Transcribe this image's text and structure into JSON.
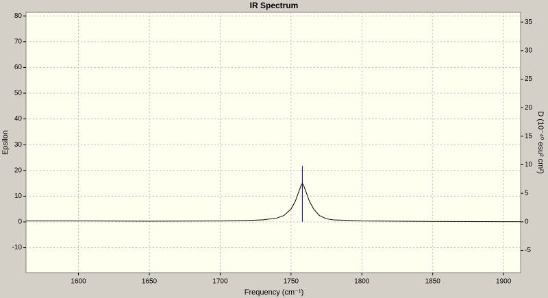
{
  "chart_data": {
    "type": "line",
    "title": "IR Spectrum",
    "x_label": "Frequency (cm⁻¹)",
    "y_label": "Epsilon",
    "y2_label": "D (10⁻⁴⁰ esu² cm²)",
    "xlim": [
      1563,
      1912
    ],
    "ylim": [
      -19.7,
      81.4
    ],
    "y2lim": [
      -8.9,
      36.7
    ],
    "xticks": [
      1600,
      1650,
      1700,
      1750,
      1800,
      1850,
      1900
    ],
    "yticks": [
      -10,
      0,
      10,
      20,
      30,
      40,
      50,
      60,
      70,
      80
    ],
    "y2ticks": [
      -5,
      0,
      5,
      10,
      15,
      20,
      25,
      30,
      35
    ],
    "grid": true,
    "series": [
      {
        "color": "#000000",
        "style": "line",
        "x": [
          1563,
          1600,
          1650,
          1700,
          1720,
          1730,
          1740,
          1745,
          1750,
          1753,
          1755,
          1757,
          1758,
          1759,
          1761,
          1763,
          1766,
          1770,
          1775,
          1780,
          1800,
          1850,
          1900,
          1912
        ],
        "values": [
          0.4,
          0.4,
          0.3,
          0.4,
          0.6,
          0.8,
          1.5,
          2.5,
          5,
          8,
          11,
          14,
          15,
          14,
          11,
          8,
          5,
          2.5,
          1.2,
          0.8,
          0.4,
          0.2,
          0.1,
          0.1
        ]
      },
      {
        "color": "#0000cc",
        "style": "stick",
        "axis": "y2",
        "x": [
          1758
        ],
        "values": [
          9.8
        ]
      }
    ]
  }
}
